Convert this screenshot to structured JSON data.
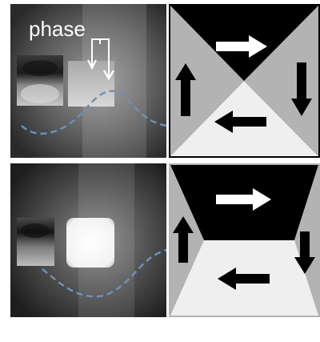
{
  "top_panel": {
    "label": "phase"
  },
  "colors": {
    "dashed_curve": "#6f8fb8",
    "domain_black": "#000000",
    "domain_gray": "#b3b3b3",
    "domain_light": "#efefef",
    "arrow_white": "#ffffff",
    "arrow_black": "#000000"
  },
  "icons": {
    "phase_marker": "bracket-down-arrows-icon",
    "flux_arrows": "arrow-icon"
  }
}
